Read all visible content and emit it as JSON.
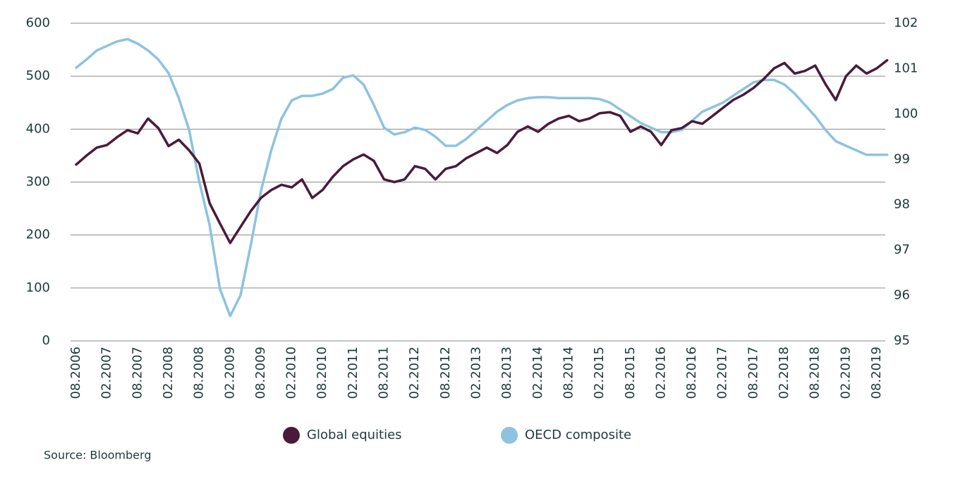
{
  "chart_data": {
    "type": "line",
    "categories": [
      "08.2006",
      null,
      null,
      "02.2007",
      null,
      null,
      "08.2007",
      null,
      null,
      "02.2008",
      null,
      null,
      "08.2008",
      null,
      null,
      "02.2009",
      null,
      null,
      "08.2009",
      null,
      null,
      "02.2010",
      null,
      null,
      "08.2010",
      null,
      null,
      "02.2011",
      null,
      null,
      "08.2011",
      null,
      null,
      "02.2012",
      null,
      null,
      "08.2012",
      null,
      null,
      "02.2013",
      null,
      null,
      "08.2013",
      null,
      null,
      "02.2014",
      null,
      null,
      "08.2014",
      null,
      null,
      "02.2015",
      null,
      null,
      "08.2015",
      null,
      null,
      "02.2016",
      null,
      null,
      "08.2016",
      null,
      null,
      "02.2017",
      null,
      null,
      "08.2017",
      null,
      null,
      "02.2018",
      null,
      null,
      "08.2018",
      null,
      null,
      "02.2019",
      null,
      null,
      "08.2019",
      null
    ],
    "series": [
      {
        "name": "Global equities",
        "color": "#4a1a3b",
        "values": [
          333,
          350,
          365,
          370,
          385,
          398,
          392,
          420,
          402,
          368,
          380,
          360,
          335,
          260,
          222,
          185,
          215,
          245,
          270,
          285,
          295,
          290,
          305,
          270,
          285,
          310,
          330,
          343,
          352,
          340,
          305,
          300,
          305,
          330,
          325,
          305,
          325,
          330,
          345,
          355,
          365,
          355,
          370,
          395,
          405,
          395,
          410,
          420,
          425,
          415,
          420,
          430,
          432,
          425,
          395,
          405,
          395,
          370,
          398,
          402,
          415,
          410,
          425,
          440,
          455,
          465,
          478,
          495,
          515,
          525,
          505,
          510,
          520,
          485,
          455,
          500,
          520,
          505,
          515,
          530
        ]
      },
      {
        "name": "OECD composite",
        "color": "#8cc3e0",
        "axis": "y2",
        "values": [
          101.02,
          101.2,
          101.4,
          101.5,
          101.6,
          101.65,
          101.55,
          101.4,
          101.2,
          100.9,
          100.35,
          99.65,
          98.5,
          97.55,
          96.15,
          95.55,
          96.0,
          97.1,
          98.3,
          99.2,
          99.9,
          100.3,
          100.4,
          100.4,
          100.45,
          100.55,
          100.8,
          100.85,
          100.65,
          100.2,
          99.7,
          99.55,
          99.6,
          99.7,
          99.65,
          99.5,
          99.3,
          99.3,
          99.45,
          99.65,
          99.85,
          100.05,
          100.2,
          100.3,
          100.35,
          100.37,
          100.37,
          100.35,
          100.35,
          100.35,
          100.35,
          100.33,
          100.25,
          100.1,
          99.95,
          99.8,
          99.7,
          99.6,
          99.6,
          99.65,
          99.85,
          100.05,
          100.15,
          100.25,
          100.4,
          100.55,
          100.7,
          100.75,
          100.75,
          100.65,
          100.45,
          100.2,
          99.95,
          99.65,
          99.4,
          99.3,
          99.2,
          99.1,
          99.1,
          99.1
        ]
      }
    ],
    "ylim": [
      0,
      600
    ],
    "yticks": [
      0,
      100,
      200,
      300,
      400,
      500,
      600
    ],
    "y2lim": [
      95,
      102
    ],
    "y2ticks": [
      95,
      96,
      97,
      98,
      99,
      100,
      101,
      102
    ],
    "grid": true,
    "legend": "bottom",
    "source": "Source: Bloomberg"
  }
}
